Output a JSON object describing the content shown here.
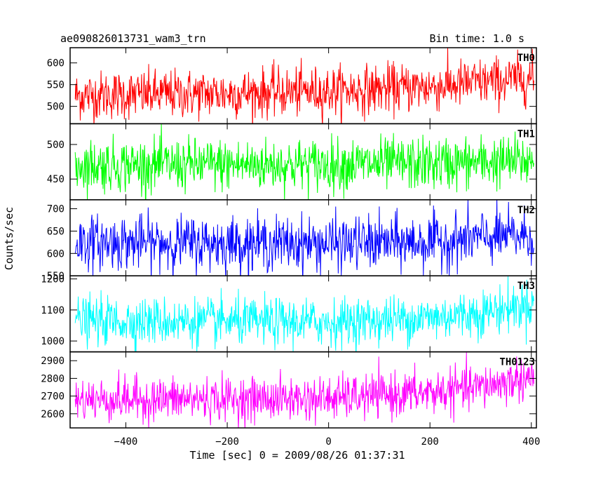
{
  "header": {
    "title": "ae090826013731_wam3_trn",
    "bin_time": "Bin time: 1.0 s"
  },
  "chart_data": {
    "type": "line",
    "xlabel": "Time [sec] 0 = 2009/08/26 01:37:31",
    "ylabel": "Counts/sec",
    "xlim": [
      -510,
      410
    ],
    "x_ticks": [
      -400,
      -200,
      0,
      200,
      400
    ],
    "x_tick_labels": [
      "−400",
      "−200",
      "0",
      "200",
      "400"
    ],
    "bin_seconds": 1.0,
    "panels": [
      {
        "name": "TH0",
        "color": "#ff0000",
        "ylim": [
          460,
          635
        ],
        "y_ticks": [
          500,
          550,
          600
        ],
        "y_tick_labels": [
          "500",
          "550",
          "600"
        ],
        "trend": [
          [
            -500,
            525
          ],
          [
            -200,
            530
          ],
          [
            0,
            535
          ],
          [
            200,
            545
          ],
          [
            300,
            555
          ],
          [
            400,
            565
          ]
        ],
        "noise": 28
      },
      {
        "name": "TH1",
        "color": "#00ff00",
        "ylim": [
          420,
          530
        ],
        "y_ticks": [
          450,
          500
        ],
        "y_tick_labels": [
          "450",
          "500"
        ],
        "trend": [
          [
            -500,
            470
          ],
          [
            0,
            471
          ],
          [
            200,
            472
          ],
          [
            400,
            476
          ]
        ],
        "noise": 19
      },
      {
        "name": "TH2",
        "color": "#0000ff",
        "ylim": [
          550,
          720
        ],
        "y_ticks": [
          550,
          600,
          650,
          700
        ],
        "y_tick_labels": [
          "550",
          "600",
          "650",
          "700"
        ],
        "trend": [
          [
            -500,
            625
          ],
          [
            0,
            622
          ],
          [
            200,
            625
          ],
          [
            300,
            635
          ],
          [
            400,
            640
          ]
        ],
        "noise": 30
      },
      {
        "name": "TH3",
        "color": "#00ffff",
        "ylim": [
          965,
          1210
        ],
        "y_ticks": [
          1000,
          1100,
          1200
        ],
        "y_tick_labels": [
          "1000",
          "1100",
          "1200"
        ],
        "trend": [
          [
            -500,
            1065
          ],
          [
            0,
            1060
          ],
          [
            200,
            1075
          ],
          [
            300,
            1090
          ],
          [
            400,
            1120
          ]
        ],
        "noise": 38
      },
      {
        "name": "TH0123",
        "color": "#ff00ff",
        "ylim": [
          2520,
          2950
        ],
        "y_ticks": [
          2600,
          2700,
          2800,
          2900
        ],
        "y_tick_labels": [
          "2600",
          "2700",
          "2800",
          "2900"
        ],
        "trend": [
          [
            -500,
            2680
          ],
          [
            0,
            2685
          ],
          [
            200,
            2720
          ],
          [
            300,
            2750
          ],
          [
            400,
            2810
          ]
        ],
        "noise": 62
      }
    ]
  }
}
